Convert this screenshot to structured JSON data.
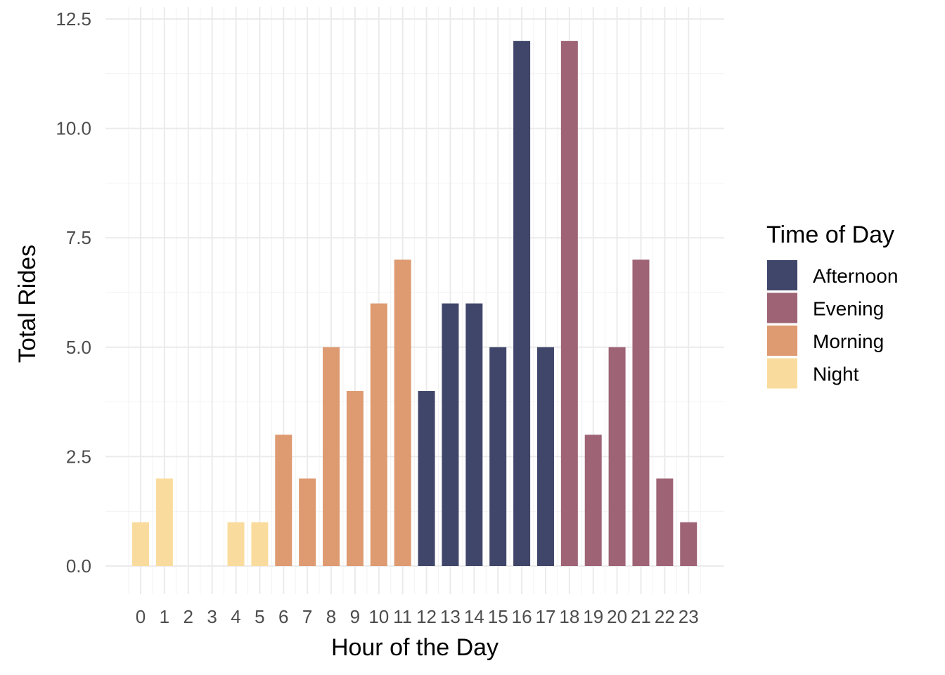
{
  "chart_data": {
    "type": "bar",
    "xlabel": "Hour of the Day",
    "ylabel": "Total Rides",
    "ylim": [
      0,
      12.5
    ],
    "yticks": [
      "0.0",
      "2.5",
      "5.0",
      "7.5",
      "10.0",
      "12.5"
    ],
    "grid": true,
    "legend": {
      "title": "Time of Day",
      "placement": "right",
      "entries": [
        {
          "name": "Afternoon",
          "color": "#40466a"
        },
        {
          "name": "Evening",
          "color": "#9e6475"
        },
        {
          "name": "Morning",
          "color": "#de9a70"
        },
        {
          "name": "Night",
          "color": "#f9dc9d"
        }
      ]
    },
    "categories": [
      "0",
      "1",
      "2",
      "3",
      "4",
      "5",
      "6",
      "7",
      "8",
      "9",
      "10",
      "11",
      "12",
      "13",
      "14",
      "15",
      "16",
      "17",
      "18",
      "19",
      "20",
      "21",
      "22",
      "23"
    ],
    "values": [
      1,
      2,
      0,
      0,
      1,
      1,
      3,
      2,
      5,
      4,
      6,
      7,
      4,
      6,
      6,
      5,
      12,
      5,
      12,
      3,
      5,
      7,
      2,
      1
    ],
    "groups": [
      "Night",
      "Night",
      "Night",
      "Night",
      "Night",
      "Night",
      "Morning",
      "Morning",
      "Morning",
      "Morning",
      "Morning",
      "Morning",
      "Afternoon",
      "Afternoon",
      "Afternoon",
      "Afternoon",
      "Afternoon",
      "Afternoon",
      "Evening",
      "Evening",
      "Evening",
      "Evening",
      "Evening",
      "Evening"
    ]
  }
}
